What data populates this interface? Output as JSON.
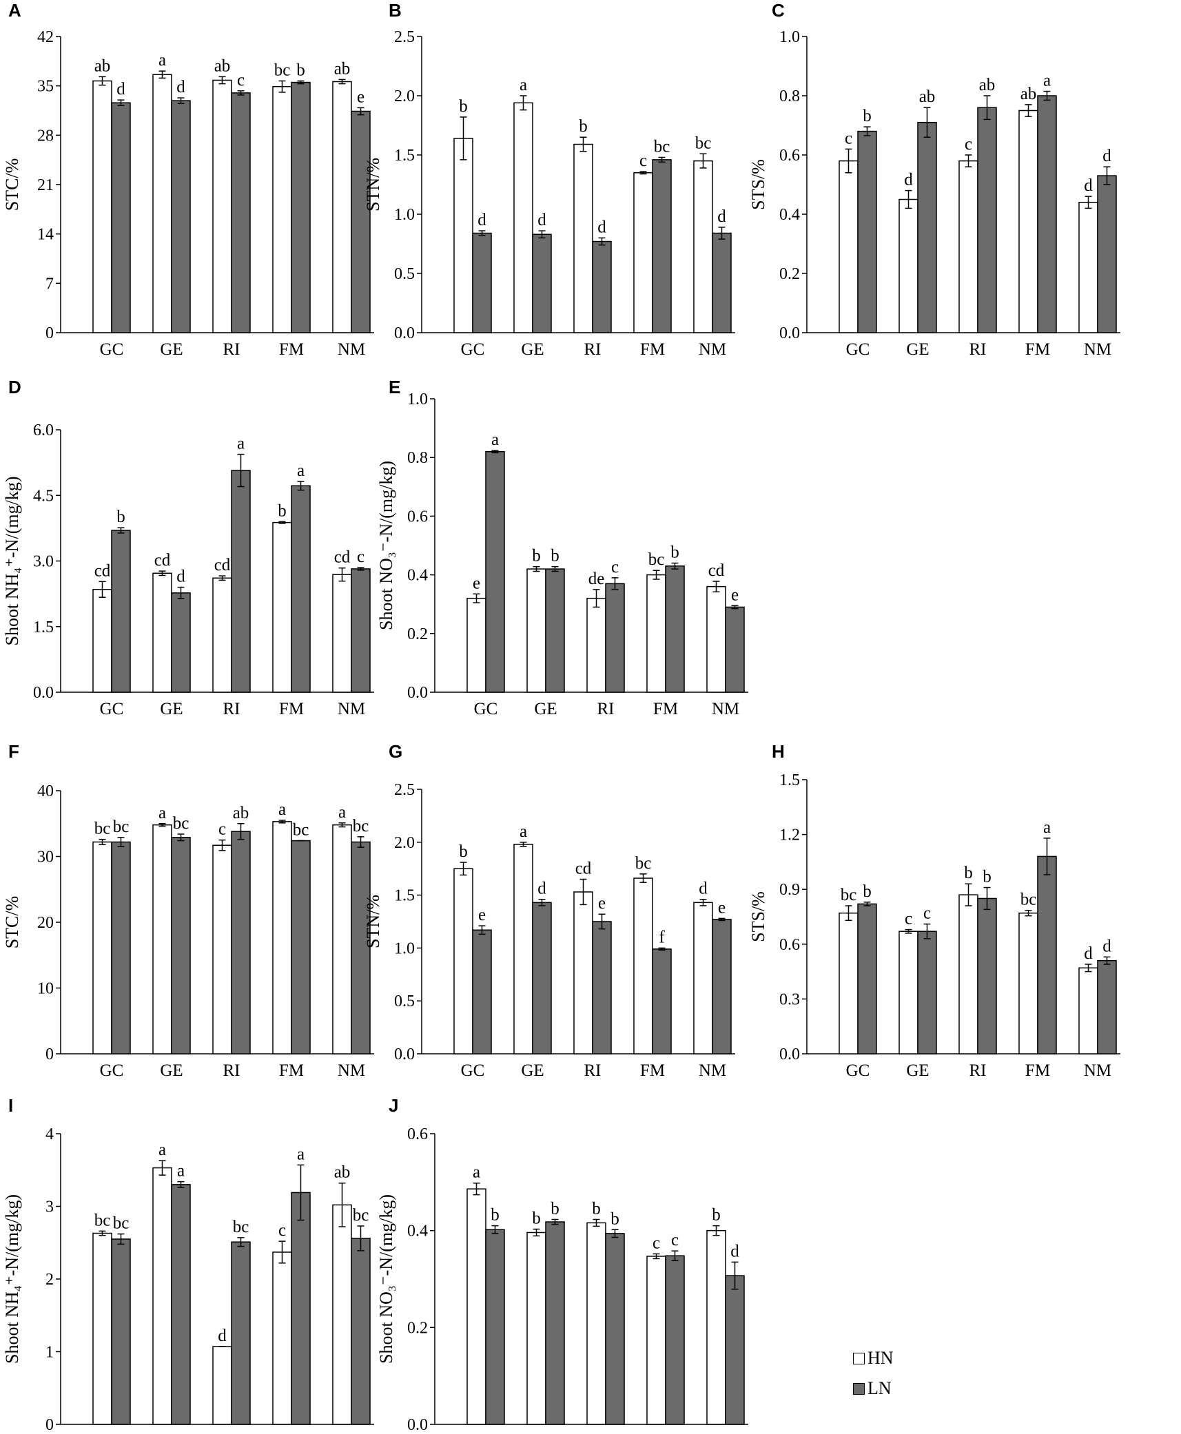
{
  "colors": {
    "HN": "#ffffff",
    "LN": "#6b6b6b",
    "axis": "#000000"
  },
  "legend": {
    "hn_label": "HN",
    "ln_label": "LN"
  },
  "chart_data": [
    {
      "id": "A",
      "panel_label": "A",
      "type": "bar",
      "ylabel": "STC/%",
      "ylim": [
        0,
        42
      ],
      "yticks": [
        "0",
        "7",
        "14",
        "21",
        "28",
        "35",
        "42"
      ],
      "categories": [
        "GC",
        "GE",
        "RI",
        "FM",
        "NM"
      ],
      "series": [
        {
          "name": "HN",
          "values": [
            35.7,
            36.6,
            35.8,
            34.9,
            35.6
          ],
          "errors": [
            0.6,
            0.5,
            0.5,
            0.8,
            0.3
          ],
          "letters": [
            "ab",
            "a",
            "ab",
            "bc",
            "ab"
          ]
        },
        {
          "name": "LN",
          "values": [
            32.6,
            32.9,
            34.0,
            35.5,
            31.4
          ],
          "errors": [
            0.4,
            0.4,
            0.3,
            0.2,
            0.5
          ],
          "letters": [
            "d",
            "d",
            "c",
            "b",
            "e"
          ]
        }
      ]
    },
    {
      "id": "B",
      "panel_label": "B",
      "type": "bar",
      "ylabel": "STN/%",
      "ylim": [
        0,
        2.5
      ],
      "yticks": [
        "0.0",
        "0.5",
        "1.0",
        "1.5",
        "2.0",
        "2.5"
      ],
      "categories": [
        "GC",
        "GE",
        "RI",
        "FM",
        "NM"
      ],
      "series": [
        {
          "name": "HN",
          "values": [
            1.64,
            1.94,
            1.59,
            1.35,
            1.45
          ],
          "errors": [
            0.18,
            0.06,
            0.06,
            0.01,
            0.06
          ],
          "letters": [
            "b",
            "a",
            "b",
            "c",
            "bc"
          ]
        },
        {
          "name": "LN",
          "values": [
            0.84,
            0.83,
            0.77,
            1.46,
            0.84
          ],
          "errors": [
            0.02,
            0.03,
            0.03,
            0.02,
            0.05
          ],
          "letters": [
            "d",
            "d",
            "d",
            "bc",
            "d"
          ]
        }
      ]
    },
    {
      "id": "C",
      "panel_label": "C",
      "type": "bar",
      "ylabel": "STS/%",
      "ylim": [
        0,
        1.0
      ],
      "yticks": [
        "0.0",
        "0.2",
        "0.4",
        "0.6",
        "0.8",
        "1.0"
      ],
      "categories": [
        "GC",
        "GE",
        "RI",
        "FM",
        "NM"
      ],
      "series": [
        {
          "name": "HN",
          "values": [
            0.58,
            0.45,
            0.58,
            0.75,
            0.44
          ],
          "errors": [
            0.04,
            0.03,
            0.02,
            0.02,
            0.02
          ],
          "letters": [
            "c",
            "d",
            "c",
            "ab",
            "d"
          ]
        },
        {
          "name": "LN",
          "values": [
            0.68,
            0.71,
            0.76,
            0.8,
            0.53
          ],
          "errors": [
            0.015,
            0.05,
            0.04,
            0.015,
            0.03
          ],
          "letters": [
            "b",
            "ab",
            "ab",
            "a",
            "d"
          ]
        }
      ]
    },
    {
      "id": "D",
      "panel_label": "D",
      "type": "bar",
      "ylabel": "Shoot NH₄⁺-N/(mg/kg)",
      "ylim": [
        0,
        6.0
      ],
      "yticks": [
        "0.0",
        "1.5",
        "3.0",
        "4.5",
        "6.0"
      ],
      "categories": [
        "GC",
        "GE",
        "RI",
        "FM",
        "NM"
      ],
      "series": [
        {
          "name": "HN",
          "values": [
            2.35,
            2.72,
            2.61,
            3.88,
            2.69
          ],
          "errors": [
            0.18,
            0.05,
            0.05,
            0.02,
            0.15
          ],
          "letters": [
            "cd",
            "cd",
            "cd",
            "b",
            "cd"
          ]
        },
        {
          "name": "LN",
          "values": [
            3.7,
            2.27,
            5.07,
            4.72,
            2.82
          ],
          "errors": [
            0.06,
            0.13,
            0.37,
            0.1,
            0.03
          ],
          "letters": [
            "b",
            "d",
            "a",
            "a",
            "c"
          ]
        }
      ]
    },
    {
      "id": "E",
      "panel_label": "E",
      "type": "bar",
      "ylabel": "Shoot NO₃⁻-N/(mg/kg)",
      "ylim": [
        0,
        1.0
      ],
      "yticks": [
        "0.0",
        "0.2",
        "0.4",
        "0.6",
        "0.8",
        "1.0"
      ],
      "categories": [
        "GC",
        "GE",
        "RI",
        "FM",
        "NM"
      ],
      "series": [
        {
          "name": "HN",
          "values": [
            0.32,
            0.42,
            0.32,
            0.4,
            0.36
          ],
          "errors": [
            0.015,
            0.008,
            0.03,
            0.015,
            0.018
          ],
          "letters": [
            "e",
            "b",
            "de",
            "bc",
            "cd"
          ]
        },
        {
          "name": "LN",
          "values": [
            0.82,
            0.42,
            0.37,
            0.43,
            0.29
          ],
          "errors": [
            0.004,
            0.008,
            0.02,
            0.01,
            0.005
          ],
          "letters": [
            "a",
            "b",
            "c",
            "b",
            "e"
          ]
        }
      ]
    },
    {
      "id": "F",
      "panel_label": "F",
      "type": "bar",
      "ylabel": "STC/%",
      "ylim": [
        0,
        40
      ],
      "yticks": [
        "0",
        "10",
        "20",
        "30",
        "40"
      ],
      "categories": [
        "GC",
        "GE",
        "RI",
        "FM",
        "NM"
      ],
      "series": [
        {
          "name": "HN",
          "values": [
            32.2,
            34.8,
            31.7,
            35.3,
            34.8
          ],
          "errors": [
            0.4,
            0.2,
            0.8,
            0.2,
            0.3
          ],
          "letters": [
            "bc",
            "a",
            "c",
            "a",
            "a"
          ]
        },
        {
          "name": "LN",
          "values": [
            32.2,
            32.9,
            33.8,
            32.4,
            32.2
          ],
          "errors": [
            0.7,
            0.5,
            1.2,
            0.0,
            0.8
          ],
          "letters": [
            "bc",
            "bc",
            "ab",
            "bc",
            "bc"
          ]
        }
      ]
    },
    {
      "id": "G",
      "panel_label": "G",
      "type": "bar",
      "ylabel": "STN/%",
      "ylim": [
        0,
        2.5
      ],
      "yticks": [
        "0.0",
        "0.5",
        "1.0",
        "1.5",
        "2.0",
        "2.5"
      ],
      "categories": [
        "GC",
        "GE",
        "RI",
        "FM",
        "NM"
      ],
      "series": [
        {
          "name": "HN",
          "values": [
            1.75,
            1.98,
            1.53,
            1.66,
            1.43
          ],
          "errors": [
            0.06,
            0.02,
            0.12,
            0.04,
            0.03
          ],
          "letters": [
            "b",
            "a",
            "cd",
            "bc",
            "d"
          ]
        },
        {
          "name": "LN",
          "values": [
            1.17,
            1.43,
            1.25,
            0.99,
            1.27
          ],
          "errors": [
            0.04,
            0.03,
            0.07,
            0.01,
            0.01
          ],
          "letters": [
            "e",
            "d",
            "e",
            "f",
            "e"
          ]
        }
      ]
    },
    {
      "id": "H",
      "panel_label": "H",
      "type": "bar",
      "ylabel": "STS/%",
      "ylim": [
        0,
        1.5
      ],
      "yticks": [
        "0.0",
        "0.3",
        "0.6",
        "0.9",
        "1.2",
        "1.5"
      ],
      "categories": [
        "GC",
        "GE",
        "RI",
        "FM",
        "NM"
      ],
      "series": [
        {
          "name": "HN",
          "values": [
            0.77,
            0.67,
            0.87,
            0.77,
            0.47
          ],
          "errors": [
            0.04,
            0.01,
            0.06,
            0.015,
            0.02
          ],
          "letters": [
            "bc",
            "c",
            "b",
            "bc",
            "d"
          ]
        },
        {
          "name": "LN",
          "values": [
            0.82,
            0.67,
            0.85,
            1.08,
            0.51
          ],
          "errors": [
            0.01,
            0.04,
            0.06,
            0.1,
            0.02
          ],
          "letters": [
            "b",
            "c",
            "b",
            "a",
            "d"
          ]
        }
      ]
    },
    {
      "id": "I",
      "panel_label": "I",
      "type": "bar",
      "ylabel": "Shoot NH₄⁺-N/(mg/kg)",
      "ylim": [
        0,
        4
      ],
      "yticks": [
        "0",
        "1",
        "2",
        "3",
        "4"
      ],
      "categories": [
        "GC",
        "GE",
        "RI",
        "FM",
        "NM"
      ],
      "series": [
        {
          "name": "HN",
          "values": [
            2.63,
            3.53,
            1.07,
            2.37,
            3.02
          ],
          "errors": [
            0.03,
            0.1,
            0.0,
            0.15,
            0.3
          ],
          "letters": [
            "bc",
            "a",
            "d",
            "c",
            "ab"
          ]
        },
        {
          "name": "LN",
          "values": [
            2.55,
            3.3,
            2.51,
            3.19,
            2.56
          ],
          "errors": [
            0.07,
            0.04,
            0.06,
            0.38,
            0.17
          ],
          "letters": [
            "bc",
            "a",
            "bc",
            "a",
            "bc"
          ]
        }
      ]
    },
    {
      "id": "J",
      "panel_label": "J",
      "type": "bar",
      "ylabel": "Shoot NO₃⁻-N/(mg/kg)",
      "ylim": [
        0,
        0.6
      ],
      "yticks": [
        "0.0",
        "0.2",
        "0.4",
        "0.6"
      ],
      "categories": [
        "GC",
        "GE",
        "RI",
        "FM",
        "NM"
      ],
      "series": [
        {
          "name": "HN",
          "values": [
            0.486,
            0.396,
            0.416,
            0.347,
            0.4
          ],
          "errors": [
            0.012,
            0.007,
            0.007,
            0.005,
            0.01
          ],
          "letters": [
            "a",
            "b",
            "b",
            "c",
            "b"
          ]
        },
        {
          "name": "LN",
          "values": [
            0.402,
            0.418,
            0.394,
            0.348,
            0.307
          ],
          "errors": [
            0.008,
            0.005,
            0.008,
            0.01,
            0.028
          ],
          "letters": [
            "b",
            "b",
            "b",
            "c",
            "d"
          ]
        }
      ]
    }
  ]
}
